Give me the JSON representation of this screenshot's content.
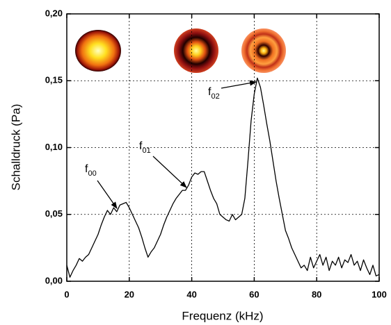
{
  "chart_data": {
    "type": "line",
    "x_label": "Frequenz (kHz)",
    "y_label": "Schalldruck (Pa)",
    "xlim": [
      0,
      100
    ],
    "ylim": [
      0,
      0.2
    ],
    "xticks": [
      0,
      20,
      40,
      60,
      80,
      100
    ],
    "yticks": [
      {
        "value": 0,
        "label": "0,00"
      },
      {
        "value": 0.05,
        "label": "0,05"
      },
      {
        "value": 0.1,
        "label": "0,10"
      },
      {
        "value": 0.15,
        "label": "0,15"
      },
      {
        "value": 0.2,
        "label": "0,20"
      }
    ],
    "grid": true,
    "x": [
      0,
      1,
      2,
      3,
      4,
      5,
      6,
      7,
      8,
      9,
      10,
      11,
      12,
      13,
      14,
      15,
      16,
      17,
      18,
      19,
      20,
      21,
      22,
      23,
      24,
      25,
      26,
      27,
      28,
      29,
      30,
      31,
      32,
      33,
      34,
      35,
      36,
      37,
      38,
      39,
      40,
      41,
      42,
      43,
      44,
      45,
      46,
      47,
      48,
      49,
      50,
      51,
      52,
      53,
      54,
      55,
      56,
      57,
      58,
      59,
      60,
      61,
      62,
      63,
      64,
      65,
      66,
      67,
      68,
      69,
      70,
      71,
      72,
      73,
      74,
      75,
      76,
      77,
      78,
      79,
      80,
      81,
      82,
      83,
      84,
      85,
      86,
      87,
      88,
      89,
      90,
      91,
      92,
      93,
      94,
      95,
      96,
      97,
      98,
      99,
      100
    ],
    "series": [
      {
        "color": "#000000",
        "values": [
          0.012,
          0.003,
          0.008,
          0.012,
          0.017,
          0.015,
          0.018,
          0.02,
          0.025,
          0.03,
          0.035,
          0.042,
          0.048,
          0.053,
          0.05,
          0.055,
          0.052,
          0.057,
          0.058,
          0.059,
          0.055,
          0.05,
          0.045,
          0.04,
          0.033,
          0.025,
          0.018,
          0.022,
          0.025,
          0.03,
          0.035,
          0.042,
          0.048,
          0.053,
          0.058,
          0.062,
          0.065,
          0.068,
          0.068,
          0.072,
          0.078,
          0.081,
          0.08,
          0.082,
          0.082,
          0.075,
          0.068,
          0.062,
          0.058,
          0.05,
          0.048,
          0.046,
          0.045,
          0.05,
          0.046,
          0.048,
          0.05,
          0.062,
          0.09,
          0.12,
          0.14,
          0.152,
          0.145,
          0.132,
          0.118,
          0.105,
          0.09,
          0.075,
          0.062,
          0.05,
          0.038,
          0.032,
          0.025,
          0.02,
          0.015,
          0.01,
          0.012,
          0.008,
          0.018,
          0.01,
          0.015,
          0.02,
          0.012,
          0.018,
          0.008,
          0.015,
          0.012,
          0.018,
          0.01,
          0.016,
          0.014,
          0.02,
          0.012,
          0.015,
          0.008,
          0.016,
          0.01,
          0.005,
          0.012,
          0.004,
          0.005
        ]
      }
    ],
    "annotations": [
      {
        "text": "f",
        "subscript": "00"
      },
      {
        "text": "f",
        "subscript": "01"
      },
      {
        "text": "f",
        "subscript": "02"
      }
    ]
  }
}
